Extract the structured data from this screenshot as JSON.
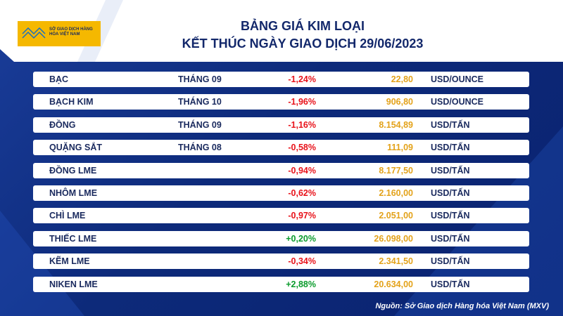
{
  "header": {
    "logo": "SỞ GIAO DỊCH HÀNG HÓA VIỆT NAM",
    "title": [
      "BẢNG GIÁ KIM LOẠI",
      "KẾT THÚC NGÀY GIAO DỊCH 29/06/2023"
    ]
  },
  "table": {
    "rows": [
      {
        "name": "BẠC",
        "month": "THÁNG 09",
        "change": "-1,24%",
        "price": "22,80",
        "unit": "USD/OUNCE"
      },
      {
        "name": "BẠCH KIM",
        "month": "THÁNG 10",
        "change": "-1,96%",
        "price": "906,80",
        "unit": "USD/OUNCE"
      },
      {
        "name": "ĐỒNG",
        "month": "THÁNG 09",
        "change": "-1,16%",
        "price": "8.154,89",
        "unit": "USD/TẤN"
      },
      {
        "name": "QUẶNG SẮT",
        "month": "THÁNG 08",
        "change": "-0,58%",
        "price": "111,09",
        "unit": "USD/TẤN"
      },
      {
        "name": "ĐỒNG LME",
        "change": "-0,94%",
        "price": "8.177,50",
        "unit": "USD/TẤN"
      },
      {
        "name": "NHÔM LME",
        "change": "-0,62%",
        "price": "2.160,00",
        "unit": "USD/TẤN"
      },
      {
        "name": "CHÌ LME",
        "change": "-0,97%",
        "price": "2.051,00",
        "unit": "USD/TẤN"
      },
      {
        "name": "THIẾC LME",
        "change": "+0,20%",
        "price": "26.098,00",
        "unit": "USD/TẤN"
      },
      {
        "name": "KẼM LME",
        "change": "-0,34%",
        "price": "2.341,50",
        "unit": "USD/TẤN"
      },
      {
        "name": "NIKEN LME",
        "change": "+2,88%",
        "price": "20.634,00",
        "unit": "USD/TẤN"
      }
    ]
  },
  "footer": {
    "source": "Nguồn: Sở Giao dịch Hàng hóa Việt Nam (MXV)"
  }
}
